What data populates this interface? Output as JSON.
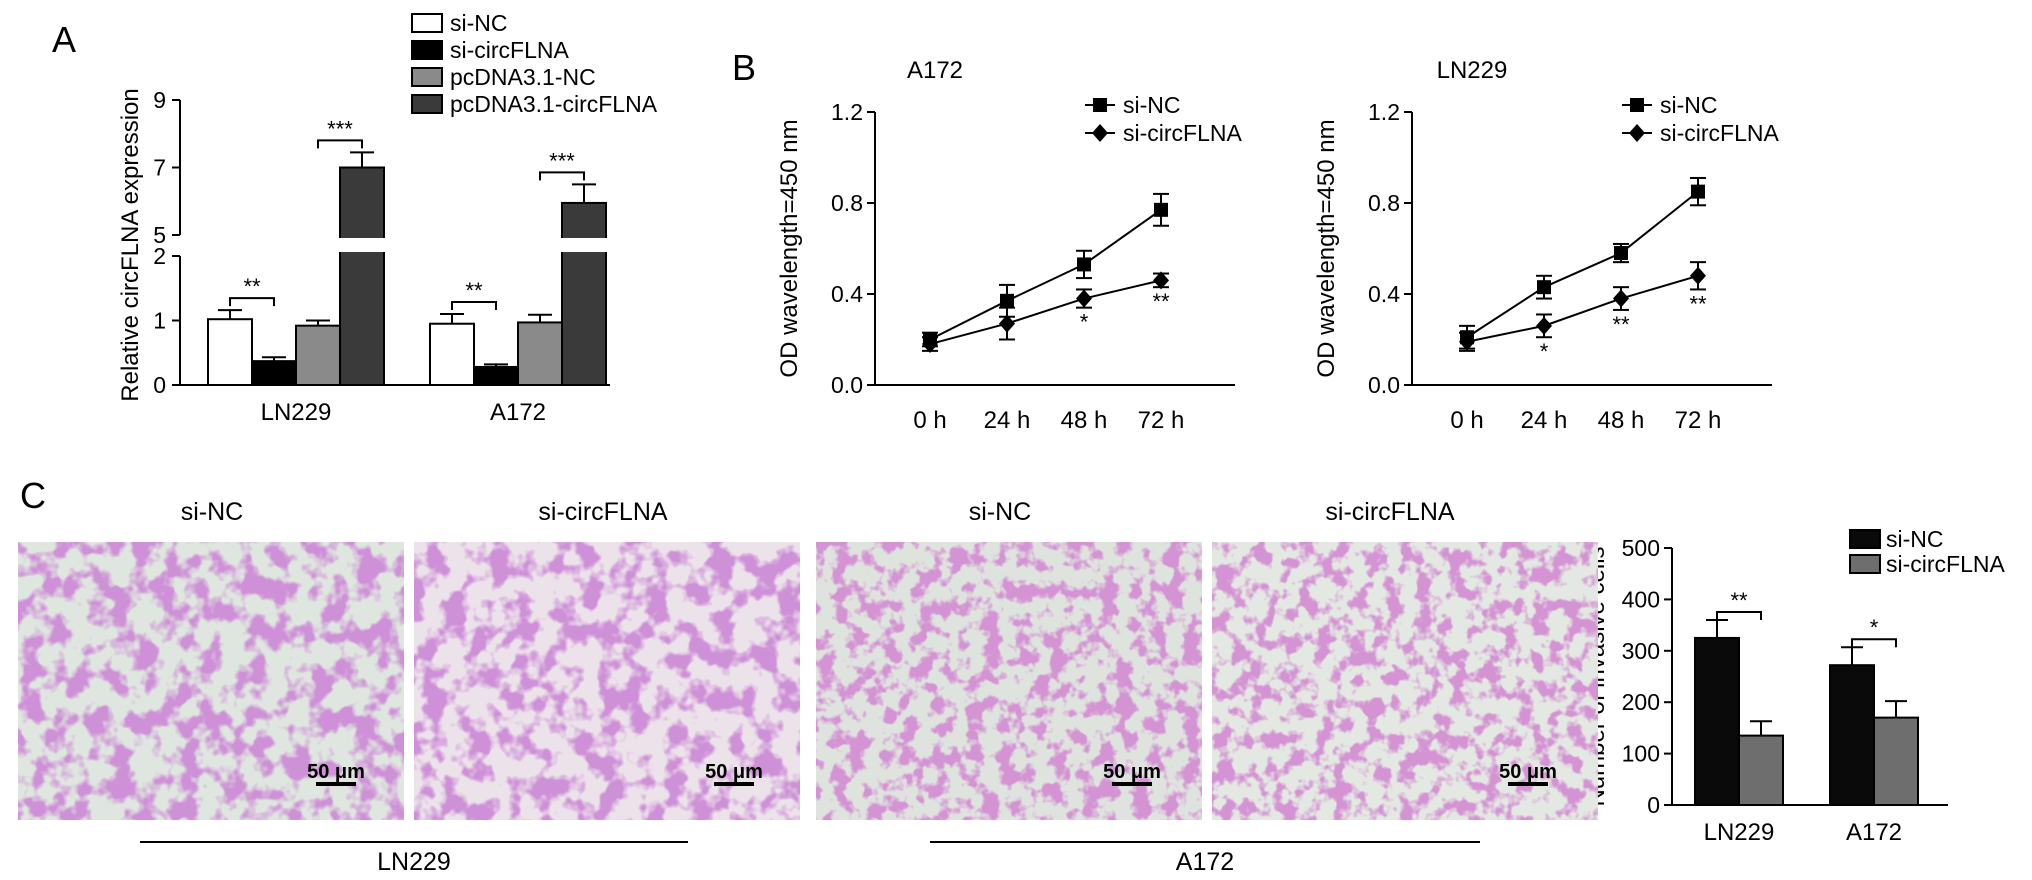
{
  "panels": {
    "A": "A",
    "B": "B",
    "C": "C"
  },
  "chart_data": [
    {
      "type": "bar",
      "panel": "A",
      "ylabel": "Relative circFLNA expression",
      "categories": [
        "LN229",
        "A172"
      ],
      "broken_axis": true,
      "ylim_lower": [
        0,
        2
      ],
      "ylim_upper": [
        5,
        9
      ],
      "yticks_lower": [
        "0",
        "1",
        "2"
      ],
      "yticks_upper": [
        "5",
        "7",
        "9"
      ],
      "series": [
        {
          "name": "si-NC",
          "values": [
            1.02,
            0.95
          ],
          "errors": [
            0.14,
            0.15
          ],
          "color": "#ffffff"
        },
        {
          "name": "si-circFLNA",
          "values": [
            0.37,
            0.28
          ],
          "errors": [
            0.06,
            0.04
          ],
          "color": "#000000"
        },
        {
          "name": "pcDNA3.1-NC",
          "values": [
            0.92,
            0.97
          ],
          "errors": [
            0.08,
            0.12
          ],
          "color": "#8a8a8a"
        },
        {
          "name": "pcDNA3.1-circFLNA",
          "values": [
            7.0,
            5.95
          ],
          "errors": [
            0.45,
            0.55
          ],
          "color": "#3a3a3a"
        }
      ],
      "significance": [
        {
          "group": "LN229",
          "from": "si-NC",
          "to": "si-circFLNA",
          "label": "**"
        },
        {
          "group": "LN229",
          "from": "pcDNA3.1-NC",
          "to": "pcDNA3.1-circFLNA",
          "label": "***"
        },
        {
          "group": "A172",
          "from": "si-NC",
          "to": "si-circFLNA",
          "label": "**"
        },
        {
          "group": "A172",
          "from": "pcDNA3.1-NC",
          "to": "pcDNA3.1-circFLNA",
          "label": "***"
        }
      ],
      "legend_position": "top"
    },
    {
      "type": "line",
      "panel": "B",
      "title": "A172",
      "ylabel": "OD wavelength=450 nm",
      "x": [
        "0 h",
        "24 h",
        "48 h",
        "72 h"
      ],
      "ylim": [
        0,
        1.2
      ],
      "yticks": [
        "0.0",
        "0.4",
        "0.8",
        "1.2"
      ],
      "series": [
        {
          "name": "si-NC",
          "marker": "square",
          "values": [
            0.2,
            0.37,
            0.53,
            0.77
          ],
          "errors": [
            0.03,
            0.07,
            0.06,
            0.07
          ]
        },
        {
          "name": "si-circFLNA",
          "marker": "diamond",
          "values": [
            0.18,
            0.27,
            0.38,
            0.46
          ],
          "errors": [
            0.03,
            0.07,
            0.04,
            0.03
          ]
        }
      ],
      "point_labels": [
        "",
        "",
        "*",
        "**"
      ],
      "legend_position": "top-right"
    },
    {
      "type": "line",
      "panel": "B",
      "title": "LN229",
      "ylabel": "OD wavelength=450 nm",
      "x": [
        "0 h",
        "24 h",
        "48 h",
        "72 h"
      ],
      "ylim": [
        0,
        1.2
      ],
      "yticks": [
        "0.0",
        "0.4",
        "0.8",
        "1.2"
      ],
      "series": [
        {
          "name": "si-NC",
          "marker": "square",
          "values": [
            0.21,
            0.43,
            0.58,
            0.85
          ],
          "errors": [
            0.05,
            0.05,
            0.04,
            0.06
          ]
        },
        {
          "name": "si-circFLNA",
          "marker": "diamond",
          "values": [
            0.19,
            0.26,
            0.38,
            0.48
          ],
          "errors": [
            0.04,
            0.05,
            0.05,
            0.06
          ]
        }
      ],
      "point_labels": [
        "",
        "*",
        "**",
        "**"
      ],
      "legend_position": "top-right"
    },
    {
      "type": "bar",
      "panel": "C",
      "ylabel": "Number of invasive cells",
      "categories": [
        "LN229",
        "A172"
      ],
      "ylim": [
        0,
        500
      ],
      "yticks": [
        "0",
        "100",
        "200",
        "300",
        "400",
        "500"
      ],
      "series": [
        {
          "name": "si-NC",
          "values": [
            325,
            272
          ],
          "errors": [
            35,
            35
          ],
          "color": "#0a0a0a"
        },
        {
          "name": "si-circFLNA",
          "values": [
            135,
            170
          ],
          "errors": [
            28,
            32
          ],
          "color": "#6e6e6e"
        }
      ],
      "significance": [
        {
          "group": "LN229",
          "label": "**"
        },
        {
          "group": "A172",
          "label": "*"
        }
      ],
      "legend_position": "top-right"
    }
  ],
  "micrographs": {
    "labels": [
      "si-NC",
      "si-circFLNA",
      "si-NC",
      "si-circFLNA"
    ],
    "scale_bar": "50 μm",
    "groups": [
      "LN229",
      "A172"
    ]
  }
}
